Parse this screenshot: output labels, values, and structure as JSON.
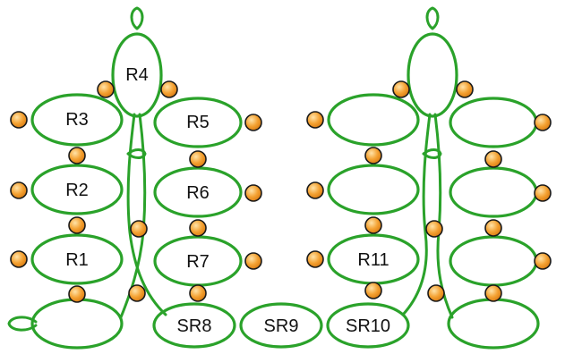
{
  "labels": {
    "r1": "R1",
    "r2": "R2",
    "r3": "R3",
    "r4": "R4",
    "r5": "R5",
    "r6": "R6",
    "r7": "R7",
    "sr8": "SR8",
    "sr9": "SR9",
    "sr10": "SR10",
    "r11": "R11"
  },
  "colors": {
    "thread": "#2aa22a",
    "bead_fill": "#f4a233",
    "bead_highlight": "#ffe3a8",
    "bead_outline": "#1a1a1a",
    "label": "#111111",
    "background": "#ffffff"
  }
}
